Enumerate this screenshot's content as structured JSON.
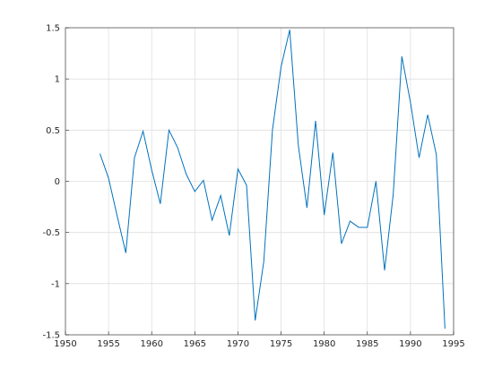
{
  "chart_data": {
    "type": "line",
    "x": [
      1954,
      1955,
      1956,
      1957,
      1958,
      1959,
      1960,
      1961,
      1962,
      1963,
      1964,
      1965,
      1966,
      1967,
      1968,
      1969,
      1970,
      1971,
      1972,
      1973,
      1974,
      1975,
      1976,
      1977,
      1978,
      1979,
      1980,
      1981,
      1982,
      1983,
      1984,
      1985,
      1986,
      1987,
      1988,
      1989,
      1990,
      1991,
      1992,
      1993,
      1994
    ],
    "values": [
      0.27,
      0.03,
      -0.34,
      -0.7,
      0.23,
      0.49,
      0.11,
      -0.22,
      0.5,
      0.33,
      0.07,
      -0.1,
      0.01,
      -0.38,
      -0.14,
      -0.53,
      0.12,
      -0.04,
      -1.36,
      -0.78,
      0.5,
      1.12,
      1.48,
      0.35,
      -0.26,
      0.59,
      -0.33,
      0.28,
      -0.61,
      -0.39,
      -0.45,
      -0.45,
      0.0,
      -0.87,
      -0.13,
      1.22,
      0.77,
      0.23,
      0.65,
      0.26,
      -1.44
    ],
    "color": "#0072bd",
    "xlim": [
      1950,
      1995
    ],
    "xticks": [
      1950,
      1955,
      1960,
      1965,
      1970,
      1975,
      1980,
      1985,
      1990,
      1995
    ],
    "ylim": [
      -1.5,
      1.5
    ],
    "yticks": [
      -1.5,
      -1,
      -0.5,
      0,
      0.5,
      1,
      1.5
    ],
    "grid": true
  }
}
